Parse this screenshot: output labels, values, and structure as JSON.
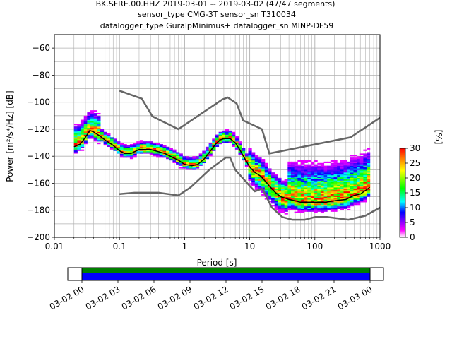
{
  "title_lines": [
    "BK.SFRE.00.HHZ   2019-03-01 -- 2019-03-02  (47/47 segments)",
    "sensor_type CMG-3T sensor_sn T310034",
    "datalogger_type GuralpMinimus+ datalogger_sn MINP-DF59"
  ],
  "colorbar": {
    "label": "[%]",
    "range": [
      0,
      30
    ],
    "ticks": [
      "0",
      "5",
      "10",
      "15",
      "20",
      "25",
      "30"
    ],
    "colormap": [
      "#ffffff",
      "#ff00ff",
      "#0000ff",
      "#00ffff",
      "#00ff00",
      "#ffff00",
      "#ff8000",
      "#ff0000"
    ]
  },
  "timeline": {
    "tick_labels": [
      "03-02 00",
      "03-02 03",
      "03-02 06",
      "03-02 09",
      "03-02 12",
      "03-02 15",
      "03-02 18",
      "03-02 21",
      "03-03 00"
    ],
    "colors": {
      "top": "#008000",
      "bottom": "#0000ff",
      "frame": "#000000"
    }
  },
  "chart_data": {
    "type": "heatmap",
    "ylabel": "Power [m²/s⁴/Hz] [dB]",
    "xlabel": "Period [s]",
    "x_scale": "log",
    "xlim": [
      0.01,
      1000
    ],
    "ylim": [
      -200,
      -50
    ],
    "x_ticks": [
      "0.01",
      "0.1",
      "1",
      "10",
      "100",
      "1000"
    ],
    "y_ticks": [
      "-200",
      "-180",
      "-160",
      "-140",
      "-120",
      "-100",
      "-80",
      "-60"
    ],
    "grid": true,
    "series": [
      {
        "role": "mean",
        "color": "#000000",
        "x": [
          0.02,
          0.025,
          0.03,
          0.035,
          0.04,
          0.05,
          0.06,
          0.08,
          0.1,
          0.12,
          0.15,
          0.2,
          0.3,
          0.5,
          0.8,
          1.0,
          1.3,
          1.6,
          2.0,
          2.5,
          3.0,
          3.5,
          4.0,
          5.0,
          6.0,
          7.0,
          8.0,
          10,
          12,
          15,
          20,
          25,
          30,
          40,
          50,
          60,
          80,
          100,
          150,
          200,
          300,
          400,
          500,
          700
        ],
        "y": [
          -133,
          -131,
          -126,
          -121,
          -122,
          -125,
          -128,
          -132,
          -136,
          -138,
          -138,
          -135,
          -135,
          -138,
          -143,
          -146,
          -147,
          -146,
          -142,
          -136,
          -131,
          -128,
          -127,
          -127,
          -130,
          -135,
          -140,
          -148,
          -152,
          -155,
          -162,
          -167,
          -170,
          -172,
          -173,
          -174,
          -174,
          -174,
          -174,
          -173,
          -172,
          -169,
          -168,
          -163
        ]
      }
    ],
    "noise_models": [
      {
        "role": "low",
        "color": "#666666",
        "x": [
          0.1,
          0.17,
          0.4,
          0.8,
          1.24,
          2.4,
          4.3,
          5.0,
          6.0,
          10,
          12,
          15.6,
          21.9,
          31.6,
          45,
          70,
          101,
          154,
          328,
          600,
          1000
        ],
        "y": [
          -168,
          -167,
          -167,
          -169,
          -163,
          -150,
          -141,
          -141,
          -150,
          -162,
          -166,
          -164,
          -178,
          -185,
          -187,
          -187,
          -185,
          -185,
          -187,
          -184,
          -178
        ]
      },
      {
        "role": "high",
        "color": "#666666",
        "x": [
          0.1,
          0.22,
          0.32,
          0.8,
          3.8,
          4.6,
          6.3,
          7.9,
          15.4,
          20,
          354.8,
          1000
        ],
        "y": [
          -91.5,
          -97.4,
          -110.5,
          -120,
          -98,
          -96.5,
          -101,
          -113.5,
          -120,
          -138,
          -126,
          -111.5
        ]
      }
    ]
  }
}
